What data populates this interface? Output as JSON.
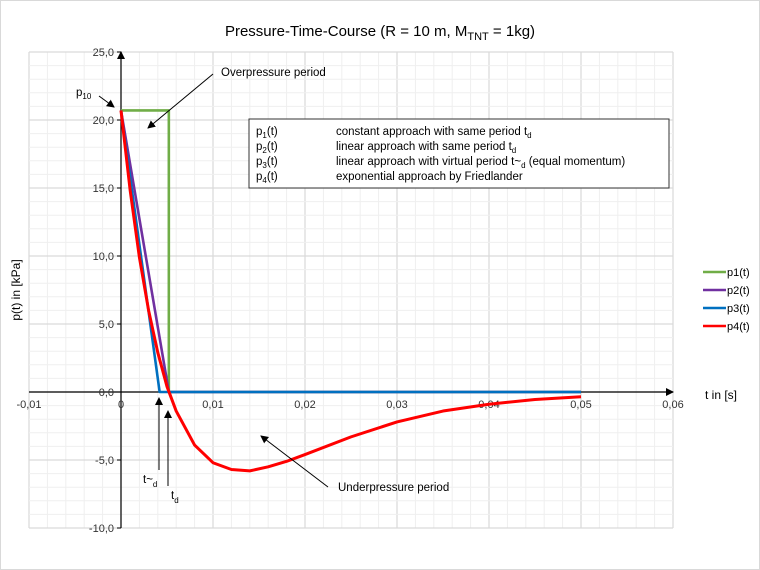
{
  "chart_data": {
    "type": "line",
    "title": {
      "main": "Pressure-Time-Course (R = 10 m, M",
      "sub": "TNT",
      "rest": " = 1kg)"
    },
    "xlabel": "t in [s]",
    "ylabel": "p(t) in [kPa]",
    "xlim": [
      -0.01,
      0.06
    ],
    "ylim": [
      -10,
      25
    ],
    "x_ticks": [
      "-0,01",
      "0",
      "0,01",
      "0,02",
      "0,03",
      "0,04",
      "0,05",
      "0,06"
    ],
    "x_tick_values": [
      -0.01,
      0,
      0.01,
      0.02,
      0.03,
      0.04,
      0.05,
      0.06
    ],
    "y_ticks": [
      "25,0",
      "20,0",
      "15,0",
      "10,0",
      "5,0",
      "0,0",
      "-5,0",
      "-10,0"
    ],
    "y_tick_values": [
      25,
      20,
      15,
      10,
      5,
      0,
      -5,
      -10
    ],
    "grid": true,
    "legend_position": "right",
    "series": [
      {
        "name": "p1(t)",
        "color": "#70ad47",
        "points": [
          [
            0,
            20.7
          ],
          [
            0.0052,
            20.7
          ],
          [
            0.0052,
            0
          ],
          [
            0.05,
            0
          ]
        ]
      },
      {
        "name": "p2(t)",
        "color": "#7030a0",
        "points": [
          [
            0,
            20.7
          ],
          [
            0.0052,
            0
          ],
          [
            0.05,
            0
          ]
        ]
      },
      {
        "name": "p3(t)",
        "color": "#0070c0",
        "points": [
          [
            0,
            20.7
          ],
          [
            0.0042,
            0
          ],
          [
            0.05,
            0
          ]
        ]
      },
      {
        "name": "p4(t)",
        "color": "#ff0000",
        "points": [
          [
            0,
            20.7
          ],
          [
            0.001,
            14.8
          ],
          [
            0.002,
            9.9
          ],
          [
            0.003,
            6.0
          ],
          [
            0.004,
            2.9
          ],
          [
            0.005,
            0.4
          ],
          [
            0.006,
            -1.4
          ],
          [
            0.008,
            -3.9
          ],
          [
            0.01,
            -5.2
          ],
          [
            0.012,
            -5.7
          ],
          [
            0.014,
            -5.8
          ],
          [
            0.016,
            -5.5
          ],
          [
            0.018,
            -5.1
          ],
          [
            0.02,
            -4.6
          ],
          [
            0.025,
            -3.3
          ],
          [
            0.03,
            -2.2
          ],
          [
            0.035,
            -1.4
          ],
          [
            0.04,
            -0.9
          ],
          [
            0.045,
            -0.55
          ],
          [
            0.05,
            -0.35
          ]
        ]
      }
    ],
    "annotations": {
      "overpressure": "Overpressure period",
      "underpressure": "Underpressure period",
      "p10": {
        "main": "p",
        "sub": "10"
      },
      "t_virtual": {
        "main": "t~",
        "sub": "d"
      },
      "t_d": {
        "main": "t",
        "sub": "d"
      }
    },
    "description_box": [
      {
        "label_main": "p",
        "label_sub": "1",
        "label_rest": "(t)",
        "text": "constant approach with same period t",
        "text_sub": "d",
        "text_rest": ""
      },
      {
        "label_main": "p",
        "label_sub": "2",
        "label_rest": "(t)",
        "text": "linear approach with same period t",
        "text_sub": "d",
        "text_rest": ""
      },
      {
        "label_main": "p",
        "label_sub": "3",
        "label_rest": "(t)",
        "text": "linear approach with virtual period t~",
        "text_sub": "d",
        "text_rest": " (equal momentum)"
      },
      {
        "label_main": "p",
        "label_sub": "4",
        "label_rest": "(t)",
        "text": "exponential approach by Friedlander",
        "text_sub": "",
        "text_rest": ""
      }
    ]
  }
}
